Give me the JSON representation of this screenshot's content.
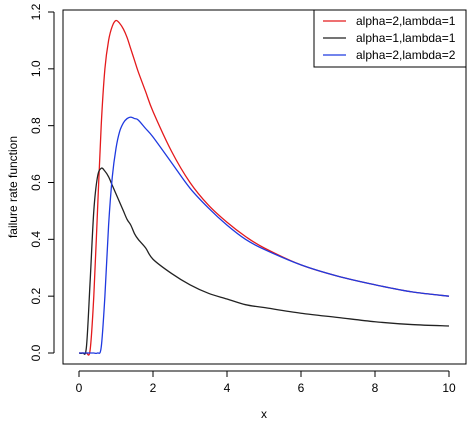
{
  "chart_data": {
    "type": "line",
    "title": "",
    "xlabel": "x",
    "ylabel": "failure rate function",
    "xlim": [
      0,
      10
    ],
    "ylim": [
      0,
      1.2
    ],
    "x_ticks": [
      0,
      2,
      4,
      6,
      8,
      10
    ],
    "x_tick_labels": [
      "0",
      "2",
      "4",
      "6",
      "8",
      "10"
    ],
    "y_ticks": [
      0.0,
      0.2,
      0.4,
      0.6,
      0.8,
      1.0,
      1.2
    ],
    "y_tick_labels": [
      "0.0",
      "0.2",
      "0.4",
      "0.6",
      "0.8",
      "1.0",
      "1.2"
    ],
    "grid": false,
    "legend_position": "top-right",
    "x": [
      0,
      0.1,
      0.2,
      0.3,
      0.4,
      0.5,
      0.6,
      0.7,
      0.8,
      0.9,
      1.0,
      1.1,
      1.2,
      1.3,
      1.4,
      1.5,
      1.6,
      1.8,
      2.0,
      2.5,
      3.0,
      3.5,
      4.0,
      4.5,
      5.0,
      6.0,
      7.0,
      8.0,
      9.0,
      10.0
    ],
    "series": [
      {
        "name": "alpha=2,lambda=1",
        "color": "#e41a1c",
        "values": [
          0,
          0,
          0,
          0.01,
          0.2,
          0.5,
          0.8,
          1.0,
          1.1,
          1.15,
          1.17,
          1.16,
          1.14,
          1.11,
          1.07,
          1.03,
          0.99,
          0.92,
          0.85,
          0.71,
          0.6,
          0.52,
          0.46,
          0.41,
          0.37,
          0.31,
          0.27,
          0.24,
          0.215,
          0.2
        ]
      },
      {
        "name": "alpha=1,lambda=1",
        "color": "#222222",
        "values": [
          0,
          0,
          0.02,
          0.25,
          0.5,
          0.62,
          0.65,
          0.64,
          0.62,
          0.59,
          0.56,
          0.53,
          0.5,
          0.47,
          0.45,
          0.42,
          0.4,
          0.37,
          0.33,
          0.28,
          0.24,
          0.21,
          0.19,
          0.17,
          0.16,
          0.14,
          0.125,
          0.11,
          0.1,
          0.095
        ]
      },
      {
        "name": "alpha=2,lambda=2",
        "color": "#1f3ae0",
        "values": [
          0,
          0,
          0,
          0,
          0,
          0,
          0.02,
          0.2,
          0.45,
          0.62,
          0.72,
          0.78,
          0.81,
          0.825,
          0.83,
          0.825,
          0.82,
          0.79,
          0.76,
          0.67,
          0.58,
          0.51,
          0.45,
          0.4,
          0.365,
          0.31,
          0.27,
          0.24,
          0.215,
          0.2
        ]
      }
    ]
  }
}
